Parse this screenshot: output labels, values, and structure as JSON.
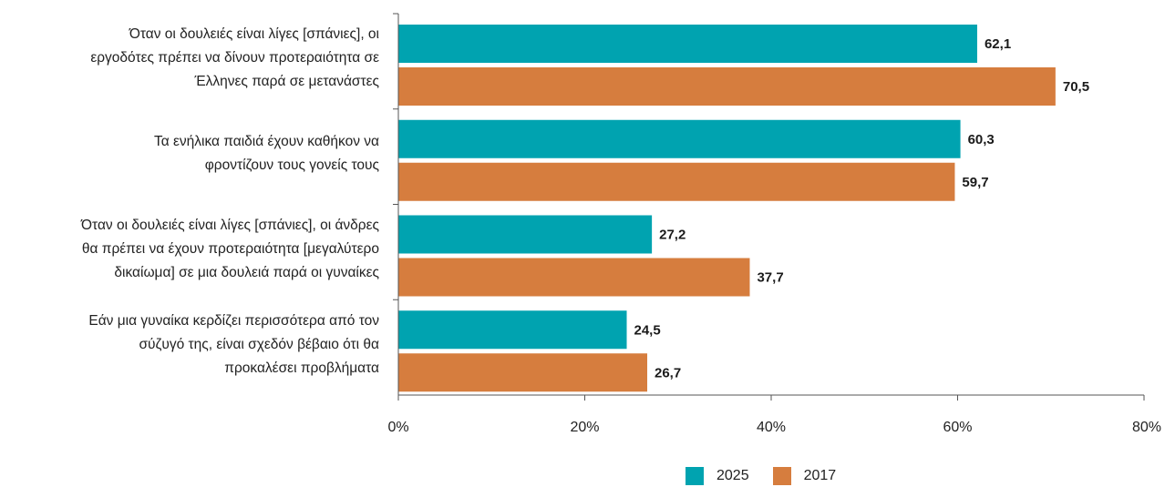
{
  "chart_data": {
    "type": "bar",
    "orientation": "horizontal",
    "categories": [
      [
        "Όταν οι δουλειές είναι λίγες [σπάνιες], οι",
        "εργοδότες πρέπει να δίνουν προτεραιότητα σε",
        "Έλληνες παρά σε μετανάστες"
      ],
      [
        "Τα ενήλικα παιδιά έχουν καθήκον να",
        "φροντίζουν τους γονείς τους"
      ],
      [
        "Όταν οι δουλειές είναι λίγες [σπάνιες], οι άνδρες",
        "θα πρέπει να έχουν προτεραιότητα [μεγαλύτερο",
        "δικαίωμα] σε μια δουλειά παρά οι γυναίκες"
      ],
      [
        "Εάν μια γυναίκα κερδίζει περισσότερα από τον",
        "σύζυγό της, είναι σχεδόν βέβαιο ότι θα",
        "προκαλέσει προβλήματα"
      ]
    ],
    "series": [
      {
        "name": "2025",
        "color": "#00a3b0",
        "values": [
          62.1,
          60.3,
          27.2,
          24.5
        ],
        "labels": [
          "62,1",
          "60,3",
          "27,2",
          "24,5"
        ]
      },
      {
        "name": "2017",
        "color": "#d67d3e",
        "values": [
          70.5,
          59.7,
          37.7,
          26.7
        ],
        "labels": [
          "70,5",
          "59,7",
          "37,7",
          "26,7"
        ]
      }
    ],
    "xlim": [
      0,
      80
    ],
    "xticks": [
      0,
      20,
      40,
      60,
      80
    ],
    "xtick_labels": [
      "0%",
      "20%",
      "40%",
      "60%",
      "80%"
    ],
    "grid": false,
    "legend_position": "bottom"
  }
}
